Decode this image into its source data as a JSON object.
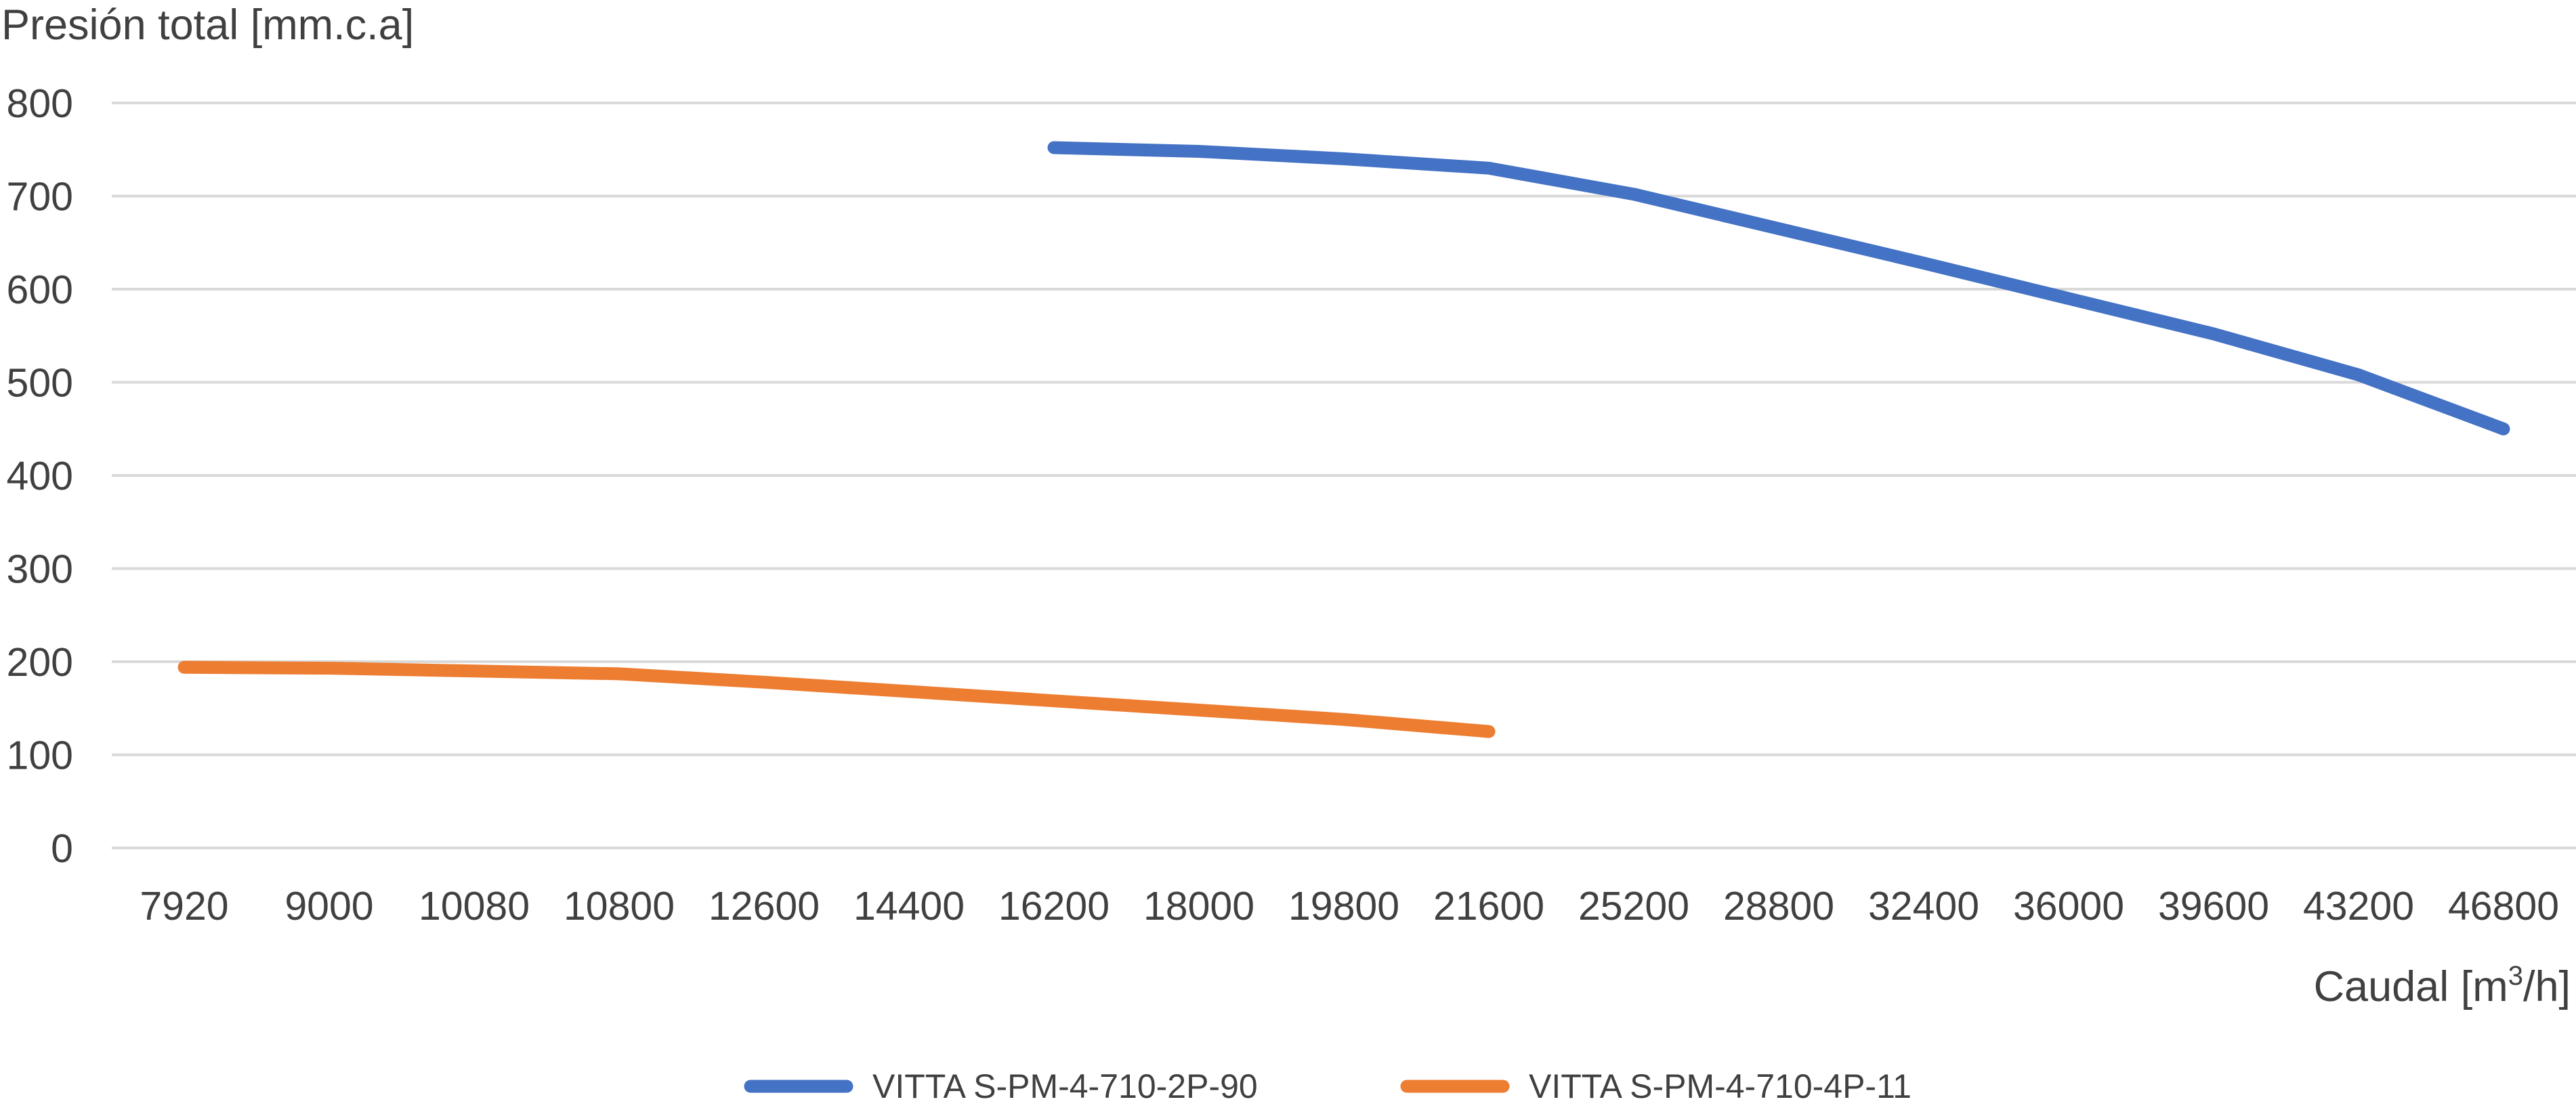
{
  "chart_data": {
    "type": "line",
    "title": "",
    "ylabel": "Presión total [mm.c.a]",
    "xlabel": "Caudal [m³/h]",
    "xlabel_parts": {
      "main": "Caudal [m",
      "sup": "3",
      "tail": "/h]"
    },
    "ylim": [
      0,
      800
    ],
    "yticks": [
      0,
      100,
      200,
      300,
      400,
      500,
      600,
      700,
      800
    ],
    "grid": true,
    "legend_position": "bottom",
    "categories": [
      "7920",
      "9000",
      "10080",
      "10800",
      "12600",
      "14400",
      "16200",
      "18000",
      "19800",
      "21600",
      "25200",
      "28800",
      "32400",
      "36000",
      "39600",
      "43200",
      "46800"
    ],
    "series": [
      {
        "name": "VITTA S-PM-4-710-2P-90",
        "color": "#4472C4",
        "values": [
          null,
          null,
          null,
          null,
          null,
          null,
          752,
          748,
          740,
          730,
          702,
          665,
          628,
          590,
          552,
          508,
          450
        ]
      },
      {
        "name": "VITTA S-PM-4-710-4P-11",
        "color": "#ED7D31",
        "values": [
          194,
          193,
          190,
          187,
          178,
          168,
          158,
          148,
          138,
          125,
          null,
          null,
          null,
          null,
          null,
          null,
          null
        ]
      }
    ]
  }
}
